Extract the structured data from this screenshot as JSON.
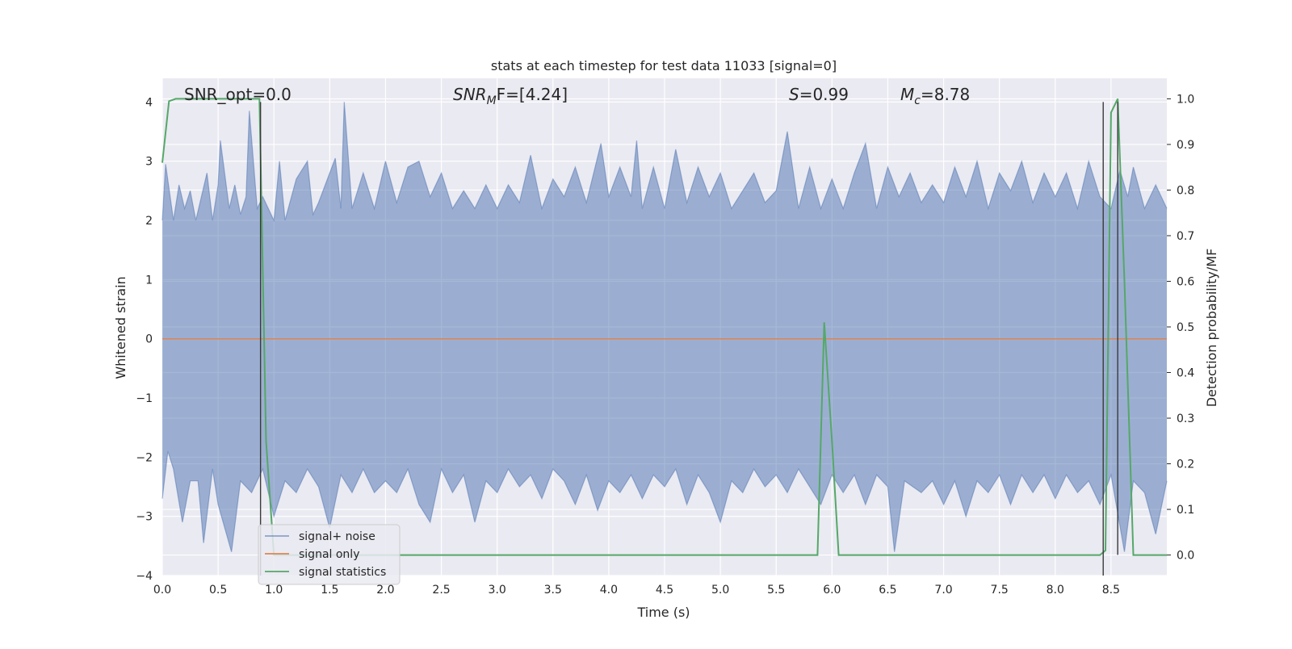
{
  "chart_data": {
    "type": "line",
    "title": "stats at each timestep for test data 11033 [signal=0]",
    "xlabel": "Time (s)",
    "ylabel_left": "Whitened strain",
    "ylabel_right": "Detection probability/MF",
    "xlim": [
      0.0,
      9.0
    ],
    "ylim_left": [
      -4.0,
      4.4
    ],
    "ylim_right": [
      -0.045,
      1.045
    ],
    "x_ticks": [
      0.0,
      0.5,
      1.0,
      1.5,
      2.0,
      2.5,
      3.0,
      3.5,
      4.0,
      4.5,
      5.0,
      5.5,
      6.0,
      6.5,
      7.0,
      7.5,
      8.0,
      8.5
    ],
    "y_ticks_left": [
      -4,
      -3,
      -2,
      -1,
      0,
      1,
      2,
      3,
      4
    ],
    "y_ticks_right": [
      0.0,
      0.1,
      0.2,
      0.3,
      0.4,
      0.5,
      0.6,
      0.7,
      0.8,
      0.9,
      1.0
    ],
    "x_tick_labels": [
      "0.0",
      "0.5",
      "1.0",
      "1.5",
      "2.0",
      "2.5",
      "3.0",
      "3.5",
      "4.0",
      "4.5",
      "5.0",
      "5.5",
      "6.0",
      "6.5",
      "7.0",
      "7.5",
      "8.0",
      "8.5"
    ],
    "y_tick_labels_left": [
      "−4",
      "−3",
      "−2",
      "−1",
      "0",
      "1",
      "2",
      "3",
      "4"
    ],
    "y_tick_labels_right": [
      "0.0",
      "0.1",
      "0.2",
      "0.3",
      "0.4",
      "0.5",
      "0.6",
      "0.7",
      "0.8",
      "0.9",
      "1.0"
    ],
    "grid": true,
    "legend_position": "bottom-left",
    "annotations": {
      "snr_opt": "SNR_opt=0.0",
      "snr_mf": {
        "base": "SNR",
        "sub": "M",
        "rest": "F=[4.24]"
      },
      "s": {
        "var": "S",
        "rest": "=0.99"
      },
      "mc": {
        "var": "M",
        "sub": "c",
        "rest": "=8.78"
      }
    },
    "series": [
      {
        "name": "signal+ noise",
        "axis": "left",
        "color": "#4c72b0",
        "opacity": 0.5,
        "envelope_upper": [
          [
            0.0,
            2.0
          ],
          [
            0.03,
            2.95
          ],
          [
            0.1,
            2.0
          ],
          [
            0.15,
            2.6
          ],
          [
            0.2,
            2.2
          ],
          [
            0.25,
            2.5
          ],
          [
            0.3,
            2.0
          ],
          [
            0.35,
            2.4
          ],
          [
            0.4,
            2.8
          ],
          [
            0.45,
            2.0
          ],
          [
            0.5,
            2.6
          ],
          [
            0.52,
            3.35
          ],
          [
            0.6,
            2.2
          ],
          [
            0.65,
            2.6
          ],
          [
            0.7,
            2.1
          ],
          [
            0.75,
            2.4
          ],
          [
            0.78,
            3.85
          ],
          [
            0.85,
            2.2
          ],
          [
            0.9,
            2.4
          ],
          [
            1.0,
            2.0
          ],
          [
            1.05,
            3.0
          ],
          [
            1.1,
            2.0
          ],
          [
            1.2,
            2.7
          ],
          [
            1.3,
            3.0
          ],
          [
            1.35,
            2.1
          ],
          [
            1.4,
            2.3
          ],
          [
            1.55,
            3.05
          ],
          [
            1.6,
            2.2
          ],
          [
            1.63,
            4.0
          ],
          [
            1.7,
            2.2
          ],
          [
            1.8,
            2.8
          ],
          [
            1.9,
            2.2
          ],
          [
            2.0,
            3.0
          ],
          [
            2.1,
            2.3
          ],
          [
            2.2,
            2.9
          ],
          [
            2.3,
            3.0
          ],
          [
            2.4,
            2.4
          ],
          [
            2.5,
            2.8
          ],
          [
            2.6,
            2.2
          ],
          [
            2.7,
            2.5
          ],
          [
            2.8,
            2.2
          ],
          [
            2.9,
            2.6
          ],
          [
            3.0,
            2.2
          ],
          [
            3.1,
            2.6
          ],
          [
            3.2,
            2.3
          ],
          [
            3.3,
            3.1
          ],
          [
            3.4,
            2.2
          ],
          [
            3.5,
            2.7
          ],
          [
            3.6,
            2.4
          ],
          [
            3.7,
            2.9
          ],
          [
            3.8,
            2.3
          ],
          [
            3.93,
            3.3
          ],
          [
            4.0,
            2.4
          ],
          [
            4.1,
            2.9
          ],
          [
            4.2,
            2.4
          ],
          [
            4.25,
            3.35
          ],
          [
            4.3,
            2.2
          ],
          [
            4.4,
            2.9
          ],
          [
            4.5,
            2.2
          ],
          [
            4.6,
            3.2
          ],
          [
            4.7,
            2.3
          ],
          [
            4.8,
            2.9
          ],
          [
            4.9,
            2.4
          ],
          [
            5.0,
            2.8
          ],
          [
            5.1,
            2.2
          ],
          [
            5.2,
            2.5
          ],
          [
            5.3,
            2.8
          ],
          [
            5.4,
            2.3
          ],
          [
            5.5,
            2.5
          ],
          [
            5.6,
            3.5
          ],
          [
            5.7,
            2.2
          ],
          [
            5.8,
            2.9
          ],
          [
            5.9,
            2.2
          ],
          [
            6.0,
            2.7
          ],
          [
            6.1,
            2.2
          ],
          [
            6.2,
            2.8
          ],
          [
            6.3,
            3.3
          ],
          [
            6.4,
            2.2
          ],
          [
            6.5,
            2.9
          ],
          [
            6.6,
            2.4
          ],
          [
            6.7,
            2.8
          ],
          [
            6.8,
            2.3
          ],
          [
            6.9,
            2.6
          ],
          [
            7.0,
            2.3
          ],
          [
            7.1,
            2.9
          ],
          [
            7.2,
            2.4
          ],
          [
            7.3,
            3.0
          ],
          [
            7.4,
            2.2
          ],
          [
            7.5,
            2.8
          ],
          [
            7.6,
            2.5
          ],
          [
            7.7,
            3.0
          ],
          [
            7.8,
            2.3
          ],
          [
            7.9,
            2.8
          ],
          [
            8.0,
            2.4
          ],
          [
            8.1,
            2.8
          ],
          [
            8.2,
            2.2
          ],
          [
            8.3,
            3.0
          ],
          [
            8.4,
            2.4
          ],
          [
            8.5,
            2.2
          ],
          [
            8.58,
            2.85
          ],
          [
            8.65,
            2.4
          ],
          [
            8.7,
            2.9
          ],
          [
            8.8,
            2.2
          ],
          [
            8.9,
            2.6
          ],
          [
            9.0,
            2.2
          ]
        ],
        "envelope_lower": [
          [
            0.0,
            -2.7
          ],
          [
            0.05,
            -1.9
          ],
          [
            0.1,
            -2.2
          ],
          [
            0.18,
            -3.1
          ],
          [
            0.25,
            -2.4
          ],
          [
            0.32,
            -2.4
          ],
          [
            0.37,
            -3.45
          ],
          [
            0.45,
            -2.2
          ],
          [
            0.5,
            -2.8
          ],
          [
            0.62,
            -3.6
          ],
          [
            0.7,
            -2.4
          ],
          [
            0.8,
            -2.6
          ],
          [
            0.9,
            -2.2
          ],
          [
            1.0,
            -3.0
          ],
          [
            1.1,
            -2.4
          ],
          [
            1.2,
            -2.6
          ],
          [
            1.3,
            -2.2
          ],
          [
            1.4,
            -2.5
          ],
          [
            1.5,
            -3.2
          ],
          [
            1.6,
            -2.3
          ],
          [
            1.7,
            -2.6
          ],
          [
            1.8,
            -2.2
          ],
          [
            1.9,
            -2.6
          ],
          [
            2.0,
            -2.4
          ],
          [
            2.1,
            -2.6
          ],
          [
            2.2,
            -2.2
          ],
          [
            2.3,
            -2.8
          ],
          [
            2.4,
            -3.1
          ],
          [
            2.5,
            -2.2
          ],
          [
            2.6,
            -2.6
          ],
          [
            2.7,
            -2.3
          ],
          [
            2.8,
            -3.1
          ],
          [
            2.9,
            -2.4
          ],
          [
            3.0,
            -2.6
          ],
          [
            3.1,
            -2.2
          ],
          [
            3.2,
            -2.5
          ],
          [
            3.3,
            -2.3
          ],
          [
            3.4,
            -2.7
          ],
          [
            3.5,
            -2.2
          ],
          [
            3.6,
            -2.4
          ],
          [
            3.7,
            -2.8
          ],
          [
            3.8,
            -2.3
          ],
          [
            3.9,
            -2.9
          ],
          [
            4.0,
            -2.4
          ],
          [
            4.1,
            -2.6
          ],
          [
            4.2,
            -2.3
          ],
          [
            4.3,
            -2.7
          ],
          [
            4.4,
            -2.3
          ],
          [
            4.5,
            -2.5
          ],
          [
            4.6,
            -2.2
          ],
          [
            4.7,
            -2.8
          ],
          [
            4.8,
            -2.3
          ],
          [
            4.9,
            -2.6
          ],
          [
            5.0,
            -3.1
          ],
          [
            5.1,
            -2.4
          ],
          [
            5.2,
            -2.6
          ],
          [
            5.3,
            -2.2
          ],
          [
            5.4,
            -2.5
          ],
          [
            5.5,
            -2.3
          ],
          [
            5.6,
            -2.6
          ],
          [
            5.7,
            -2.2
          ],
          [
            5.8,
            -2.5
          ],
          [
            5.9,
            -2.8
          ],
          [
            6.0,
            -2.3
          ],
          [
            6.1,
            -2.6
          ],
          [
            6.2,
            -2.3
          ],
          [
            6.3,
            -2.8
          ],
          [
            6.4,
            -2.3
          ],
          [
            6.5,
            -2.5
          ],
          [
            6.56,
            -3.6
          ],
          [
            6.65,
            -2.4
          ],
          [
            6.8,
            -2.6
          ],
          [
            6.9,
            -2.4
          ],
          [
            7.0,
            -2.8
          ],
          [
            7.1,
            -2.4
          ],
          [
            7.2,
            -3.0
          ],
          [
            7.3,
            -2.4
          ],
          [
            7.4,
            -2.6
          ],
          [
            7.5,
            -2.3
          ],
          [
            7.6,
            -2.8
          ],
          [
            7.7,
            -2.3
          ],
          [
            7.8,
            -2.6
          ],
          [
            7.9,
            -2.3
          ],
          [
            8.0,
            -2.7
          ],
          [
            8.1,
            -2.3
          ],
          [
            8.2,
            -2.6
          ],
          [
            8.3,
            -2.4
          ],
          [
            8.4,
            -2.8
          ],
          [
            8.5,
            -2.3
          ],
          [
            8.62,
            -3.6
          ],
          [
            8.7,
            -2.4
          ],
          [
            8.8,
            -2.6
          ],
          [
            8.9,
            -3.3
          ],
          [
            9.0,
            -2.4
          ]
        ]
      },
      {
        "name": "signal only",
        "axis": "left",
        "color": "#dd8452",
        "x": [
          0.0,
          9.0
        ],
        "y": [
          0.0,
          0.0
        ]
      },
      {
        "name": "signal statistics",
        "axis": "right",
        "color": "#55a868",
        "x": [
          0.0,
          0.06,
          0.12,
          0.2,
          0.3,
          0.4,
          0.5,
          0.6,
          0.7,
          0.8,
          0.87,
          0.93,
          1.0,
          1.1,
          1.3,
          2.0,
          3.0,
          4.0,
          5.0,
          5.5,
          5.87,
          5.93,
          6.0,
          6.06,
          6.5,
          7.0,
          7.5,
          8.0,
          8.4,
          8.45,
          8.5,
          8.56,
          8.62,
          8.7,
          8.8,
          9.0
        ],
        "y": [
          0.86,
          0.995,
          1.0,
          1.0,
          1.0,
          1.0,
          1.0,
          1.0,
          1.0,
          1.0,
          1.0,
          0.25,
          0.0,
          0.0,
          0.0,
          0.0,
          0.0,
          0.0,
          0.0,
          0.0,
          0.0,
          0.51,
          0.25,
          0.0,
          0.0,
          0.0,
          0.0,
          0.0,
          0.0,
          0.01,
          0.97,
          1.0,
          0.6,
          0.0,
          0.0,
          0.0
        ]
      }
    ],
    "markers": {
      "color": "#3a3a3a",
      "axis": "left",
      "lines": [
        {
          "x": 0.88,
          "ymin": -4.0,
          "ymax": 4.0
        },
        {
          "x": 8.43,
          "ymin": -4.0,
          "ymax": 4.0
        },
        {
          "x": 8.56,
          "ymin": -3.65,
          "ymax": 4.0
        }
      ]
    }
  }
}
